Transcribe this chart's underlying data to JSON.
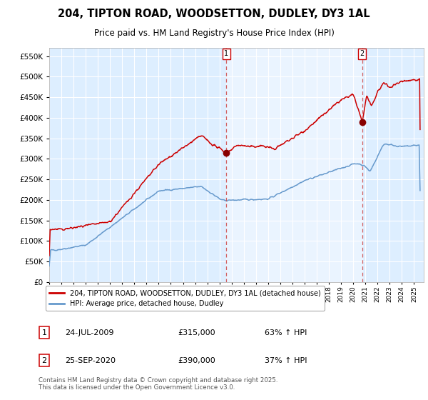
{
  "title_line1": "204, TIPTON ROAD, WOODSETTON, DUDLEY, DY3 1AL",
  "title_line2": "Price paid vs. HM Land Registry's House Price Index (HPI)",
  "legend_label_red": "204, TIPTON ROAD, WOODSETTON, DUDLEY, DY3 1AL (detached house)",
  "legend_label_blue": "HPI: Average price, detached house, Dudley",
  "purchase1_date": "24-JUL-2009",
  "purchase1_price": 315000,
  "purchase1_label": "63% ↑ HPI",
  "purchase2_date": "25-SEP-2020",
  "purchase2_price": 390000,
  "purchase2_label": "37% ↑ HPI",
  "footnote": "Contains HM Land Registry data © Crown copyright and database right 2025.\nThis data is licensed under the Open Government Licence v3.0.",
  "red_color": "#cc0000",
  "blue_color": "#6699cc",
  "background_color": "#ddeeff",
  "grid_color": "#ffffff",
  "ylim": [
    0,
    570000
  ],
  "yticks": [
    0,
    50000,
    100000,
    150000,
    200000,
    250000,
    300000,
    350000,
    400000,
    450000,
    500000,
    550000
  ],
  "purchase1_x": 2009.55,
  "purchase2_x": 2020.73,
  "xmin": 1995.0,
  "xmax": 2025.8
}
